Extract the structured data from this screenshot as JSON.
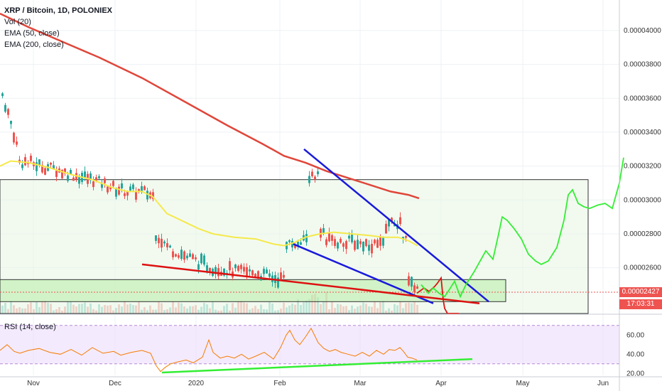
{
  "legend": {
    "title": "XRP / Bitcoin, 1D, POLONIEX",
    "vol": "Vol (20)",
    "ema50": "EMA (50, close)",
    "ema200": "EMA (200, close)"
  },
  "rsi_label": "RSI (14, close)",
  "last_price": "0.00002427",
  "countdown": "17:03:31",
  "colors": {
    "up": "#26a69a",
    "down": "#ef5350",
    "ema50": "#f5e94a",
    "ema200": "#e0463a",
    "rsi_line": "#f57c00",
    "blue_line": "#1a1adb",
    "red_line": "#dd1111",
    "green_line": "#33ee33"
  },
  "chart_data": [
    {
      "type": "candlestick",
      "title": "XRP / Bitcoin, 1D, POLONIEX",
      "x_ticks": [
        "Nov",
        "Dec",
        "2020",
        "Feb",
        "Mar",
        "Apr",
        "May",
        "Jun"
      ],
      "y_ticks": [
        "0.00004000",
        "0.00003800",
        "0.00003600",
        "0.00003400",
        "0.00003200",
        "0.00003000",
        "0.00002800",
        "0.00002600"
      ],
      "ylim": [
        2.33e-05,
        4.18e-05
      ],
      "series": [
        {
          "name": "EMA (50, close)",
          "points": [
            [
              0,
              3.2e-05
            ],
            [
              5,
              3.21e-05
            ],
            [
              15,
              3.23e-05
            ],
            [
              40,
              3.22e-05
            ],
            [
              70,
              3.19e-05
            ],
            [
              100,
              3.15e-05
            ],
            [
              130,
              3.12e-05
            ],
            [
              160,
              3.07e-05
            ],
            [
              180,
              3.05e-05
            ],
            [
              200,
              3.05e-05
            ],
            [
              215,
              3.02e-05
            ],
            [
              235,
              2.92e-05
            ],
            [
              260,
              2.87e-05
            ],
            [
              280,
              2.83e-05
            ],
            [
              300,
              2.8e-05
            ],
            [
              330,
              2.78e-05
            ],
            [
              360,
              2.77e-05
            ],
            [
              385,
              2.74e-05
            ],
            [
              400,
              2.73e-05
            ],
            [
              415,
              2.75e-05
            ],
            [
              430,
              2.78e-05
            ],
            [
              450,
              2.8e-05
            ],
            [
              470,
              2.81e-05
            ],
            [
              495,
              2.8e-05
            ],
            [
              520,
              2.79e-05
            ],
            [
              540,
              2.78e-05
            ],
            [
              560,
              2.78e-05
            ],
            [
              575,
              2.76e-05
            ],
            [
              588,
              2.73e-05
            ]
          ]
        },
        {
          "name": "EMA (200, close)",
          "points": [
            [
              0,
              4.1e-05
            ],
            [
              40,
              4.02e-05
            ],
            [
              90,
              3.93e-05
            ],
            [
              140,
              3.84e-05
            ],
            [
              200,
              3.72e-05
            ],
            [
              260,
              3.58e-05
            ],
            [
              320,
              3.44e-05
            ],
            [
              370,
              3.33e-05
            ],
            [
              400,
              3.26e-05
            ],
            [
              430,
              3.22e-05
            ],
            [
              460,
              3.17e-05
            ],
            [
              490,
              3.13e-05
            ],
            [
              520,
              3.09e-05
            ],
            [
              550,
              3.05e-05
            ],
            [
              575,
              3.03e-05
            ],
            [
              590,
              3.01e-05
            ]
          ]
        }
      ],
      "annotations": {
        "box_large": {
          "x0": 0,
          "x1": 828,
          "y0": 3.12e-05,
          "y1": 2.33e-05
        },
        "box_green": {
          "x0": 0,
          "x1": 712,
          "y0": 2.53e-05,
          "y1": 2.4e-05
        },
        "blue_upper": [
          [
            428,
            3.3e-05
          ],
          [
            688,
            2.4e-05
          ]
        ],
        "blue_lower": [
          [
            413,
            2.74e-05
          ],
          [
            610,
            2.39e-05
          ]
        ],
        "red_support": [
          [
            200,
            2.62e-05
          ],
          [
            675,
            2.39e-05
          ]
        ],
        "projection_red": [
          [
            587,
            2.45e-05
          ],
          [
            597,
            2.48e-05
          ],
          [
            604,
            2.46e-05
          ],
          [
            612,
            2.49e-05
          ],
          [
            616,
            2.51e-05
          ],
          [
            621,
            2.54e-05
          ],
          [
            624,
            2.41e-05
          ],
          [
            626,
            2.36e-05
          ],
          [
            630,
            2.33e-05
          ],
          [
            646,
            2.33e-05
          ]
        ],
        "projection_green": [
          [
            593,
            2.5e-05
          ],
          [
            603,
            2.45e-05
          ],
          [
            610,
            2.48e-05
          ],
          [
            618,
            2.45e-05
          ],
          [
            626,
            2.43e-05
          ],
          [
            634,
            2.48e-05
          ],
          [
            640,
            2.52e-05
          ],
          [
            648,
            2.43e-05
          ],
          [
            656,
            2.5e-05
          ],
          [
            668,
            2.58e-05
          ],
          [
            676,
            2.64e-05
          ],
          [
            684,
            2.7e-05
          ],
          [
            694,
            2.65e-05
          ],
          [
            702,
            2.8e-05
          ],
          [
            707,
            2.9e-05
          ],
          [
            714,
            2.88e-05
          ],
          [
            724,
            2.83e-05
          ],
          [
            734,
            2.77e-05
          ],
          [
            744,
            2.68e-05
          ],
          [
            754,
            2.64e-05
          ],
          [
            762,
            2.62e-05
          ],
          [
            772,
            2.64e-05
          ],
          [
            784,
            2.72e-05
          ],
          [
            794,
            2.88e-05
          ],
          [
            800,
            3.03e-05
          ],
          [
            806,
            3.06e-05
          ],
          [
            814,
            2.98e-05
          ],
          [
            822,
            2.96e-05
          ],
          [
            830,
            2.95e-05
          ],
          [
            842,
            2.97e-05
          ],
          [
            852,
            2.98e-05
          ],
          [
            862,
            2.95e-05
          ],
          [
            872,
            3.1e-05
          ],
          [
            878,
            3.25e-05
          ]
        ]
      }
    },
    {
      "type": "line",
      "title": "RSI (14, close)",
      "y_ticks": [
        "60.00",
        "40.00",
        "20.00"
      ],
      "ylim": [
        18,
        78
      ],
      "series": [
        {
          "name": "RSI",
          "points": [
            [
              0,
              44
            ],
            [
              10,
              50
            ],
            [
              20,
              43
            ],
            [
              28,
              41
            ],
            [
              40,
              44
            ],
            [
              55,
              46
            ],
            [
              70,
              42
            ],
            [
              85,
              40
            ],
            [
              100,
              45
            ],
            [
              115,
              39
            ],
            [
              130,
              47
            ],
            [
              145,
              41
            ],
            [
              160,
              43
            ],
            [
              170,
              39
            ],
            [
              185,
              42
            ],
            [
              200,
              44
            ],
            [
              212,
              41
            ],
            [
              220,
              28
            ],
            [
              226,
              22
            ],
            [
              232,
              26
            ],
            [
              240,
              30
            ],
            [
              250,
              32
            ],
            [
              262,
              34
            ],
            [
              272,
              31
            ],
            [
              285,
              37
            ],
            [
              294,
              55
            ],
            [
              300,
              42
            ],
            [
              310,
              36
            ],
            [
              320,
              38
            ],
            [
              330,
              36
            ],
            [
              340,
              40
            ],
            [
              350,
              35
            ],
            [
              360,
              38
            ],
            [
              372,
              42
            ],
            [
              385,
              35
            ],
            [
              395,
              47
            ],
            [
              403,
              60
            ],
            [
              408,
              65
            ],
            [
              415,
              55
            ],
            [
              422,
              50
            ],
            [
              430,
              58
            ],
            [
              438,
              67
            ],
            [
              444,
              58
            ],
            [
              448,
              52
            ],
            [
              456,
              46
            ],
            [
              464,
              43
            ],
            [
              472,
              45
            ],
            [
              480,
              42
            ],
            [
              490,
              40
            ],
            [
              500,
              38
            ],
            [
              510,
              42
            ],
            [
              520,
              38
            ],
            [
              530,
              44
            ],
            [
              540,
              40
            ],
            [
              548,
              45
            ],
            [
              556,
              44
            ],
            [
              563,
              47
            ],
            [
              568,
              43
            ],
            [
              574,
              37
            ],
            [
              580,
              36
            ],
            [
              587,
              34
            ]
          ]
        },
        {
          "name": "RSI trend",
          "points": [
            [
              228,
              21
            ],
            [
              665,
              35
            ]
          ]
        }
      ]
    }
  ]
}
